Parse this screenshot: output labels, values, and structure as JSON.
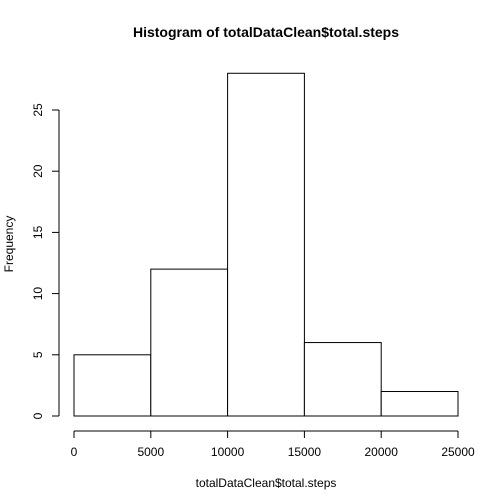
{
  "chart_data": {
    "type": "bar",
    "title": "Histogram of totalDataClean$total.steps",
    "xlabel": "totalDataClean$total.steps",
    "ylabel": "Frequency",
    "bins": [
      {
        "from": 0,
        "to": 5000,
        "count": 5
      },
      {
        "from": 5000,
        "to": 10000,
        "count": 12
      },
      {
        "from": 10000,
        "to": 15000,
        "count": 28
      },
      {
        "from": 15000,
        "to": 20000,
        "count": 6
      },
      {
        "from": 20000,
        "to": 25000,
        "count": 2
      }
    ],
    "xlim": [
      0,
      25000
    ],
    "ylim": [
      0,
      28
    ],
    "xticks": [
      0,
      5000,
      10000,
      15000,
      20000,
      25000
    ],
    "yticks": [
      0,
      5,
      10,
      15,
      20,
      25
    ],
    "grid": false,
    "legend": "none",
    "colors": {
      "bar_fill": "#ffffff",
      "bar_stroke": "#000000"
    }
  }
}
